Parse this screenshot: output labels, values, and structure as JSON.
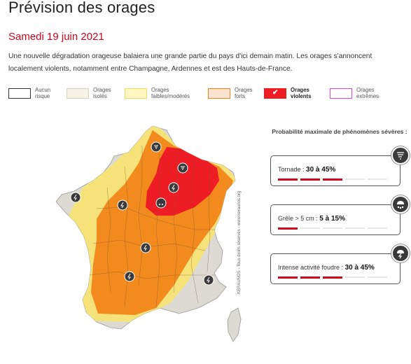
{
  "header": {
    "title": "Prévision des orages",
    "date": "Samedi 19 juin 2021",
    "intro": "Une nouvelle dégradation orageuse balaiera une grande partie du pays d'ici demain matin. Les orages s'annoncent localement violents, notamment entre Champagne, Ardennes et est des Hauts-de-France."
  },
  "legend": [
    {
      "line1": "Aucun",
      "line2": "risque",
      "fill": "#ffffff",
      "border": "#333333"
    },
    {
      "line1": "Orages",
      "line2": "isolés",
      "fill": "#f6f2e6",
      "border": "#d8d2c0"
    },
    {
      "line1": "Orages",
      "line2": "faibles/modérés",
      "fill": "#fff7c2",
      "border": "#f0dc60"
    },
    {
      "line1": "Orages",
      "line2": "forts",
      "fill": "#fbe3cf",
      "border": "#f0821e"
    },
    {
      "line1": "Orages",
      "line2": "violents",
      "fill": "#ee1c24",
      "border": "#ee1c24"
    },
    {
      "line1": "Orages",
      "line2": "extrêmes",
      "fill": "#ffffff",
      "border": "#e040e0"
    }
  ],
  "map": {
    "credit": "KERAUNOS - Tous droits réservés - www.keraunos.org",
    "colors": {
      "none": "#dcdad2",
      "isolated": "#dcdad2",
      "weak": "#f5e37a",
      "strong": "#f28a1e",
      "violent": "#ee1c24",
      "borders": "#8a5a3a"
    }
  },
  "panel": {
    "title": "Probabilité maximale de phénomènes sévères :",
    "cards": [
      {
        "label": "Tornade : ",
        "value": "30 à 45%",
        "filled": 3,
        "icon": "tornado-icon"
      },
      {
        "label": "Grêle > 5 cm : ",
        "value": "5 à 15%",
        "filled": 1,
        "icon": "hail-icon"
      },
      {
        "label": "Intense activité foudre : ",
        "value": "30 à 45%",
        "filled": 3,
        "icon": "lightning-icon"
      }
    ]
  }
}
